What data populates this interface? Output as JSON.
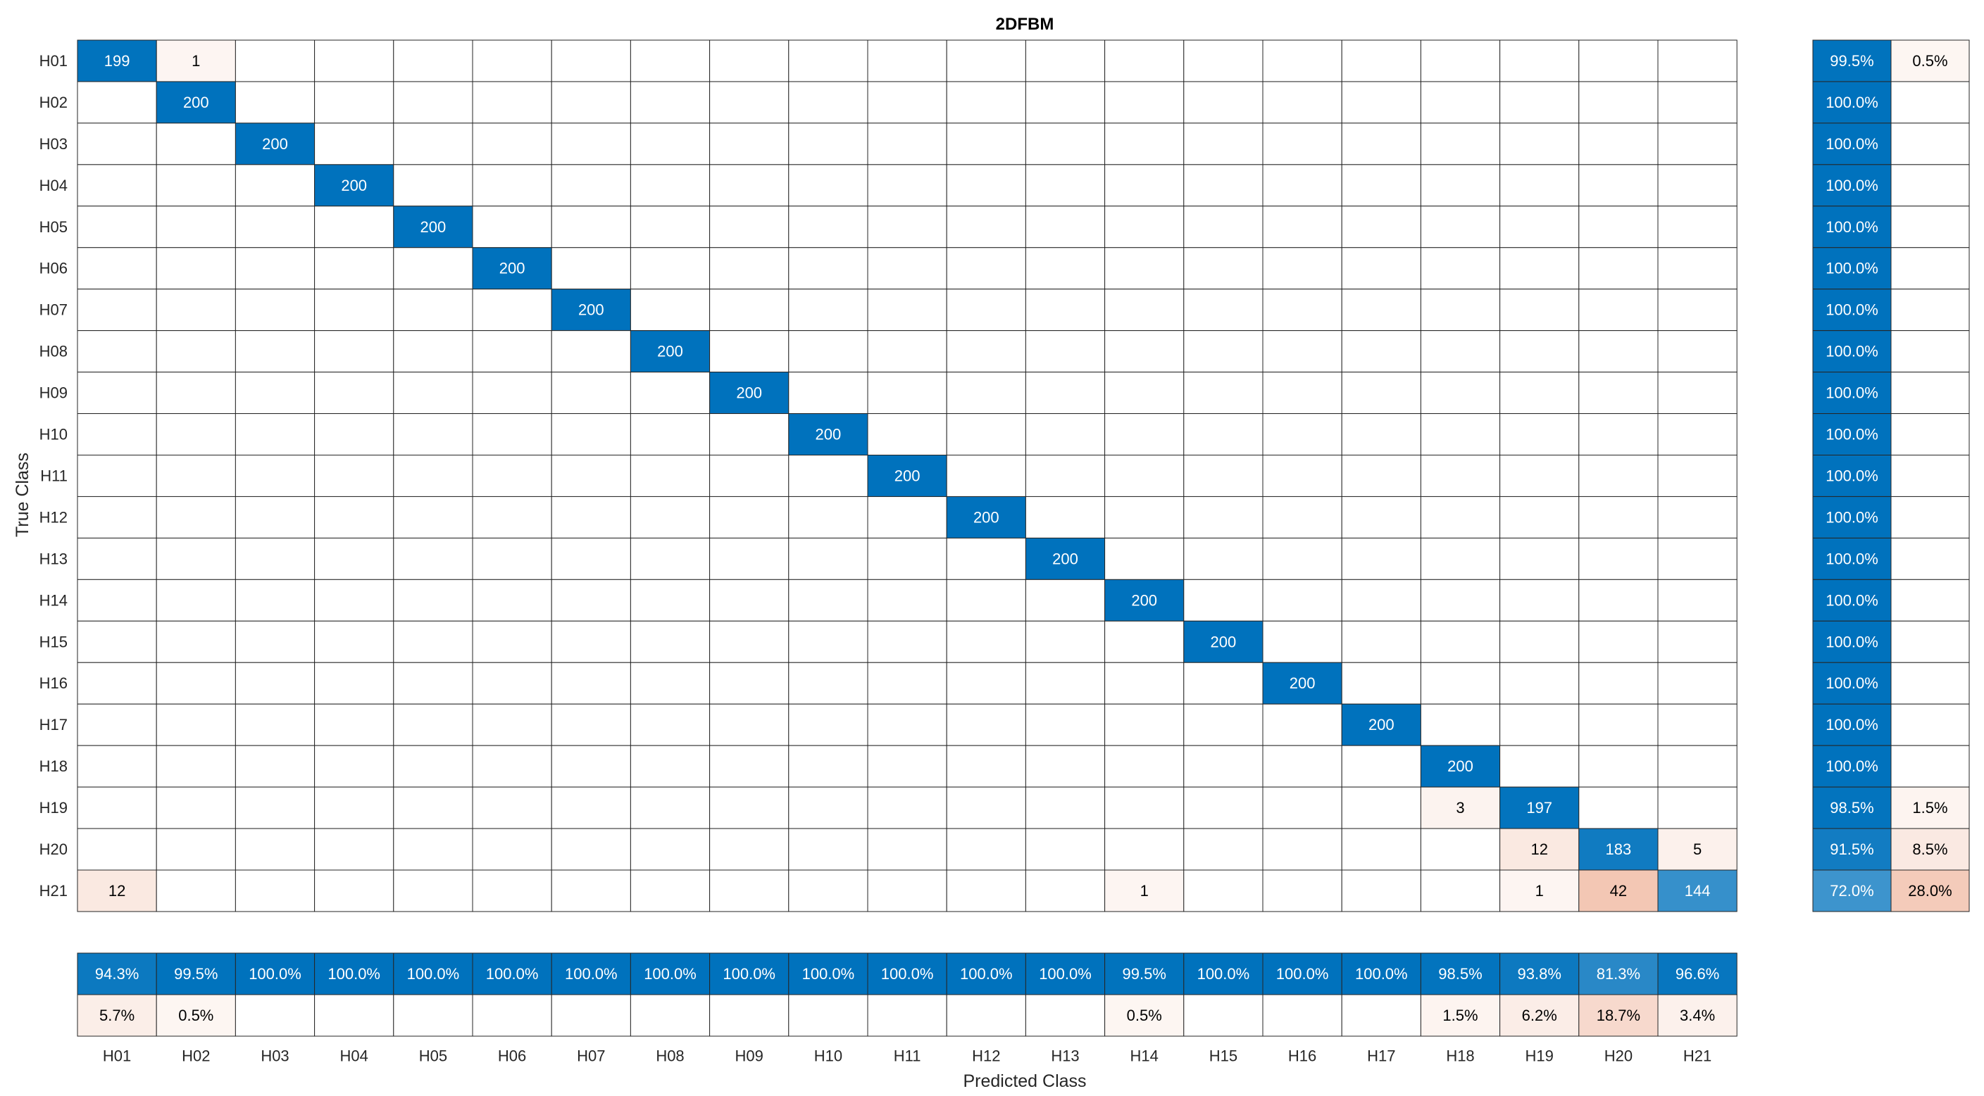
{
  "chart_data": {
    "type": "heatmap",
    "title": "2DFBM",
    "xlabel": "Predicted Class",
    "ylabel": "True Class",
    "classes": [
      "H01",
      "H02",
      "H03",
      "H04",
      "H05",
      "H06",
      "H07",
      "H08",
      "H09",
      "H10",
      "H11",
      "H12",
      "H13",
      "H14",
      "H15",
      "H16",
      "H17",
      "H18",
      "H19",
      "H20",
      "H21"
    ],
    "matrix": [
      [
        199,
        1,
        0,
        0,
        0,
        0,
        0,
        0,
        0,
        0,
        0,
        0,
        0,
        0,
        0,
        0,
        0,
        0,
        0,
        0,
        0
      ],
      [
        0,
        200,
        0,
        0,
        0,
        0,
        0,
        0,
        0,
        0,
        0,
        0,
        0,
        0,
        0,
        0,
        0,
        0,
        0,
        0,
        0
      ],
      [
        0,
        0,
        200,
        0,
        0,
        0,
        0,
        0,
        0,
        0,
        0,
        0,
        0,
        0,
        0,
        0,
        0,
        0,
        0,
        0,
        0
      ],
      [
        0,
        0,
        0,
        200,
        0,
        0,
        0,
        0,
        0,
        0,
        0,
        0,
        0,
        0,
        0,
        0,
        0,
        0,
        0,
        0,
        0
      ],
      [
        0,
        0,
        0,
        0,
        200,
        0,
        0,
        0,
        0,
        0,
        0,
        0,
        0,
        0,
        0,
        0,
        0,
        0,
        0,
        0,
        0
      ],
      [
        0,
        0,
        0,
        0,
        0,
        200,
        0,
        0,
        0,
        0,
        0,
        0,
        0,
        0,
        0,
        0,
        0,
        0,
        0,
        0,
        0
      ],
      [
        0,
        0,
        0,
        0,
        0,
        0,
        200,
        0,
        0,
        0,
        0,
        0,
        0,
        0,
        0,
        0,
        0,
        0,
        0,
        0,
        0
      ],
      [
        0,
        0,
        0,
        0,
        0,
        0,
        0,
        200,
        0,
        0,
        0,
        0,
        0,
        0,
        0,
        0,
        0,
        0,
        0,
        0,
        0
      ],
      [
        0,
        0,
        0,
        0,
        0,
        0,
        0,
        0,
        200,
        0,
        0,
        0,
        0,
        0,
        0,
        0,
        0,
        0,
        0,
        0,
        0
      ],
      [
        0,
        0,
        0,
        0,
        0,
        0,
        0,
        0,
        0,
        200,
        0,
        0,
        0,
        0,
        0,
        0,
        0,
        0,
        0,
        0,
        0
      ],
      [
        0,
        0,
        0,
        0,
        0,
        0,
        0,
        0,
        0,
        0,
        200,
        0,
        0,
        0,
        0,
        0,
        0,
        0,
        0,
        0,
        0
      ],
      [
        0,
        0,
        0,
        0,
        0,
        0,
        0,
        0,
        0,
        0,
        0,
        200,
        0,
        0,
        0,
        0,
        0,
        0,
        0,
        0,
        0
      ],
      [
        0,
        0,
        0,
        0,
        0,
        0,
        0,
        0,
        0,
        0,
        0,
        0,
        200,
        0,
        0,
        0,
        0,
        0,
        0,
        0,
        0
      ],
      [
        0,
        0,
        0,
        0,
        0,
        0,
        0,
        0,
        0,
        0,
        0,
        0,
        0,
        200,
        0,
        0,
        0,
        0,
        0,
        0,
        0
      ],
      [
        0,
        0,
        0,
        0,
        0,
        0,
        0,
        0,
        0,
        0,
        0,
        0,
        0,
        0,
        200,
        0,
        0,
        0,
        0,
        0,
        0
      ],
      [
        0,
        0,
        0,
        0,
        0,
        0,
        0,
        0,
        0,
        0,
        0,
        0,
        0,
        0,
        0,
        200,
        0,
        0,
        0,
        0,
        0
      ],
      [
        0,
        0,
        0,
        0,
        0,
        0,
        0,
        0,
        0,
        0,
        0,
        0,
        0,
        0,
        0,
        0,
        200,
        0,
        0,
        0,
        0
      ],
      [
        0,
        0,
        0,
        0,
        0,
        0,
        0,
        0,
        0,
        0,
        0,
        0,
        0,
        0,
        0,
        0,
        0,
        200,
        0,
        0,
        0
      ],
      [
        0,
        0,
        0,
        0,
        0,
        0,
        0,
        0,
        0,
        0,
        0,
        0,
        0,
        0,
        0,
        0,
        0,
        3,
        197,
        0,
        0
      ],
      [
        0,
        0,
        0,
        0,
        0,
        0,
        0,
        0,
        0,
        0,
        0,
        0,
        0,
        0,
        0,
        0,
        0,
        0,
        12,
        183,
        5
      ],
      [
        12,
        0,
        0,
        0,
        0,
        0,
        0,
        0,
        0,
        0,
        0,
        0,
        0,
        1,
        0,
        0,
        0,
        0,
        1,
        42,
        144
      ]
    ],
    "row_summary": {
      "correct": [
        "99.5%",
        "100.0%",
        "100.0%",
        "100.0%",
        "100.0%",
        "100.0%",
        "100.0%",
        "100.0%",
        "100.0%",
        "100.0%",
        "100.0%",
        "100.0%",
        "100.0%",
        "100.0%",
        "100.0%",
        "100.0%",
        "100.0%",
        "100.0%",
        "98.5%",
        "91.5%",
        "72.0%"
      ],
      "incorrect": [
        "0.5%",
        "",
        "",
        "",
        "",
        "",
        "",
        "",
        "",
        "",
        "",
        "",
        "",
        "",
        "",
        "",
        "",
        "",
        "1.5%",
        "8.5%",
        "28.0%"
      ]
    },
    "column_summary": {
      "correct": [
        "94.3%",
        "99.5%",
        "100.0%",
        "100.0%",
        "100.0%",
        "100.0%",
        "100.0%",
        "100.0%",
        "100.0%",
        "100.0%",
        "100.0%",
        "100.0%",
        "100.0%",
        "99.5%",
        "100.0%",
        "100.0%",
        "100.0%",
        "98.5%",
        "93.8%",
        "81.3%",
        "96.6%"
      ],
      "incorrect": [
        "5.7%",
        "0.5%",
        "",
        "",
        "",
        "",
        "",
        "",
        "",
        "",
        "",
        "",
        "",
        "0.5%",
        "",
        "",
        "",
        "1.5%",
        "6.2%",
        "18.7%",
        "3.4%"
      ]
    },
    "colors": {
      "correct": "#0072bd",
      "incorrect": "#d95319",
      "grid": "#262626",
      "empty": "#ffffff"
    }
  }
}
